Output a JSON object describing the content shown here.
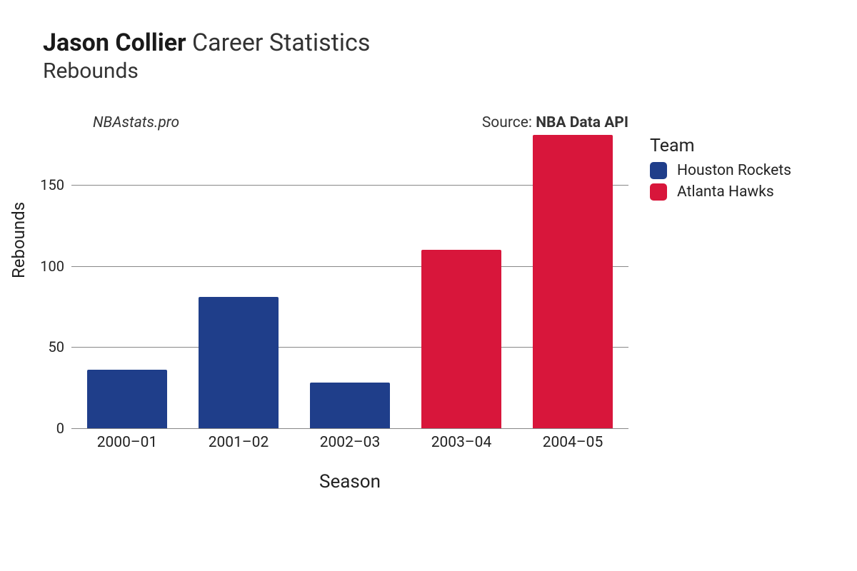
{
  "title": {
    "bold": "Jason Collier",
    "rest": "Career Statistics",
    "subtitle": "Rebounds",
    "title_fontsize": 34,
    "subtitle_fontsize": 30
  },
  "subhead": {
    "brand": "NBAstats.pro",
    "source_label": "Source: ",
    "source_name": "NBA Data API",
    "fontsize": 21
  },
  "chart": {
    "type": "bar",
    "xlabel": "Season",
    "ylabel": "Rebounds",
    "xlabel_fontsize": 26,
    "ylabel_fontsize": 24,
    "tick_fontsize": 20,
    "categories": [
      "2000–01",
      "2001–02",
      "2002–03",
      "2003–04",
      "2004–05"
    ],
    "values": [
      36,
      81,
      28,
      110,
      181
    ],
    "bar_width": 0.72,
    "teams": [
      "Houston Rockets",
      "Houston Rockets",
      "Houston Rockets",
      "Atlanta Hawks",
      "Atlanta Hawks"
    ],
    "team_colors": {
      "Houston Rockets": "#1f3e8a",
      "Atlanta Hawks": "#d8163b"
    },
    "ylim": [
      0,
      185
    ],
    "yticks": [
      0,
      50,
      100,
      150
    ],
    "grid_color": "#888888",
    "background_color": "#ffffff"
  },
  "legend": {
    "title": "Team",
    "title_fontsize": 25,
    "item_fontsize": 21,
    "items": [
      {
        "label": "Houston Rockets",
        "color": "#1f3e8a"
      },
      {
        "label": "Atlanta Hawks",
        "color": "#d8163b"
      }
    ]
  }
}
